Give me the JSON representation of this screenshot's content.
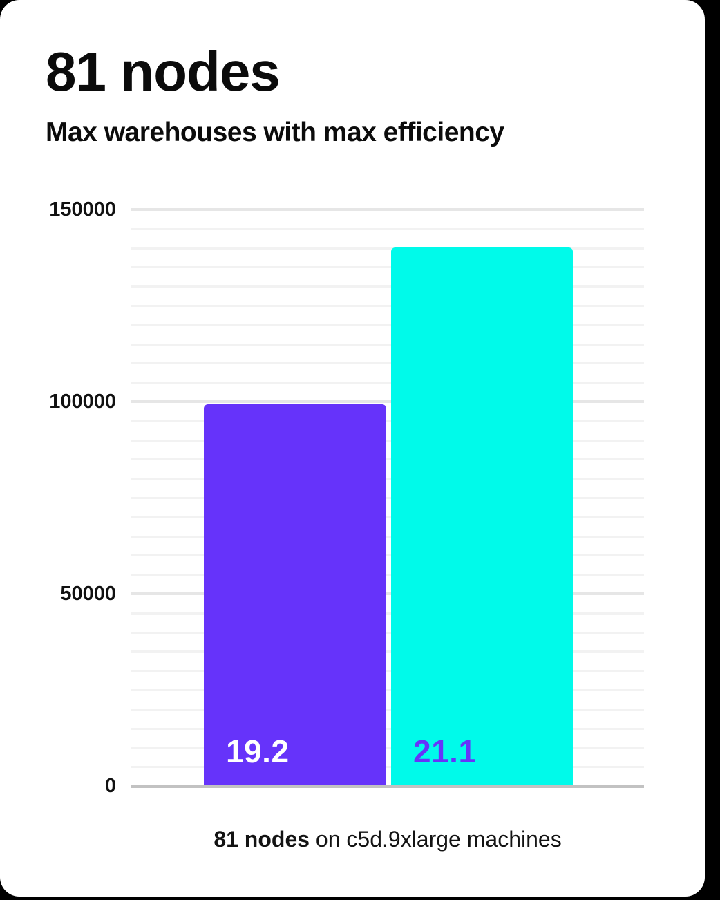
{
  "page": {
    "title": "81 nodes",
    "subtitle": "Max warehouses with max efficiency"
  },
  "caption": {
    "bold": "81 nodes",
    "rest": " on c5d.9xlarge machines"
  },
  "colors": {
    "bar_purple": "#6633fa",
    "bar_cyan": "#00faea",
    "label_on_purple": "#ffffff",
    "label_on_cyan": "#6633fa",
    "grid_minor": "#f2f2f2",
    "grid_major": "#e6e6e6",
    "axis_baseline": "#c2c2c2",
    "text": "#0b0b0b"
  },
  "chart_data": {
    "type": "bar",
    "title": "81 nodes",
    "subtitle": "Max warehouses with max efficiency",
    "categories": [
      "19.2",
      "21.1"
    ],
    "values": [
      99500,
      140300
    ],
    "bar_labels": [
      "19.2",
      "21.1"
    ],
    "bar_colors": [
      "#6633fa",
      "#00faea"
    ],
    "bar_label_colors": [
      "#ffffff",
      "#6633fa"
    ],
    "xlabel": "",
    "ylabel": "",
    "ylim": [
      0,
      150000
    ],
    "yticks": [
      0,
      50000,
      100000,
      150000
    ],
    "minor_tick_step": 5000,
    "grid": "horizontal",
    "legend": "none",
    "caption": "81 nodes on c5d.9xlarge machines"
  }
}
